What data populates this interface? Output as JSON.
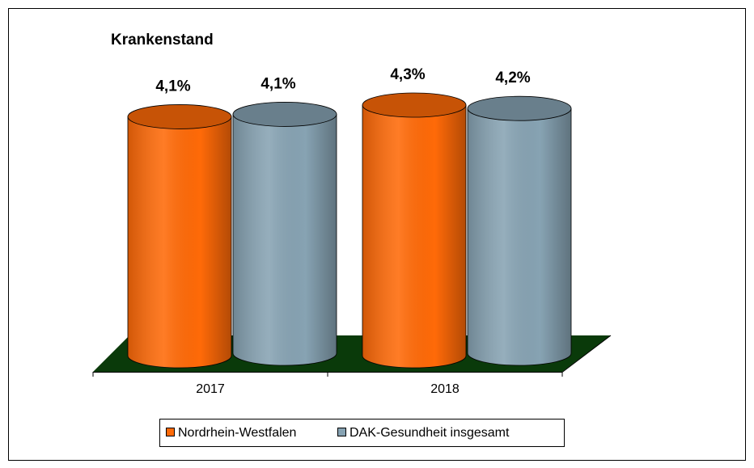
{
  "chart_data": {
    "type": "bar",
    "title": "Krankenstand",
    "categories": [
      "2017",
      "2018"
    ],
    "series": [
      {
        "name": "Nordrhein-Westfalen",
        "color": "#ff6a08",
        "values": [
          4.1,
          4.3
        ],
        "value_labels": [
          "4,1%",
          "4,3%"
        ]
      },
      {
        "name": "DAK-Gesundheit insgesamt",
        "color": "#87a3b3",
        "values": [
          4.1,
          4.2
        ],
        "value_labels": [
          "4,1%",
          "4,2%"
        ]
      }
    ],
    "floor_color": "#0a3a0a",
    "legend": "bottom"
  }
}
